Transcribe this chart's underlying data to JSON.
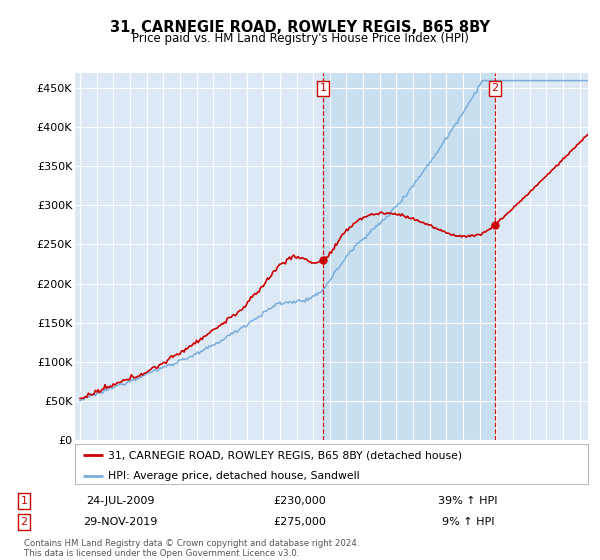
{
  "title": "31, CARNEGIE ROAD, ROWLEY REGIS, B65 8BY",
  "subtitle": "Price paid vs. HM Land Registry's House Price Index (HPI)",
  "ytick_labels": [
    "£0",
    "£50K",
    "£100K",
    "£150K",
    "£200K",
    "£250K",
    "£300K",
    "£350K",
    "£400K",
    "£450K"
  ],
  "ytick_vals": [
    0,
    50000,
    100000,
    150000,
    200000,
    250000,
    300000,
    350000,
    400000,
    450000
  ],
  "sale1_date": "24-JUL-2009",
  "sale1_price": 230000,
  "sale1_pct": "39% ↑ HPI",
  "sale2_date": "29-NOV-2019",
  "sale2_price": 275000,
  "sale2_pct": "9% ↑ HPI",
  "legend_red": "31, CARNEGIE ROAD, ROWLEY REGIS, B65 8BY (detached house)",
  "legend_blue": "HPI: Average price, detached house, Sandwell",
  "footnote1": "Contains HM Land Registry data © Crown copyright and database right 2024.",
  "footnote2": "This data is licensed under the Open Government Licence v3.0.",
  "red_color": "#cc0000",
  "blue_color": "#7aaddb",
  "vline_color": "#cc0000",
  "plot_bg_color": "#dce9f5",
  "highlight_bg_color": "#c8dff0",
  "grid_color": "#ffffff",
  "fig_bg": "#ffffff"
}
